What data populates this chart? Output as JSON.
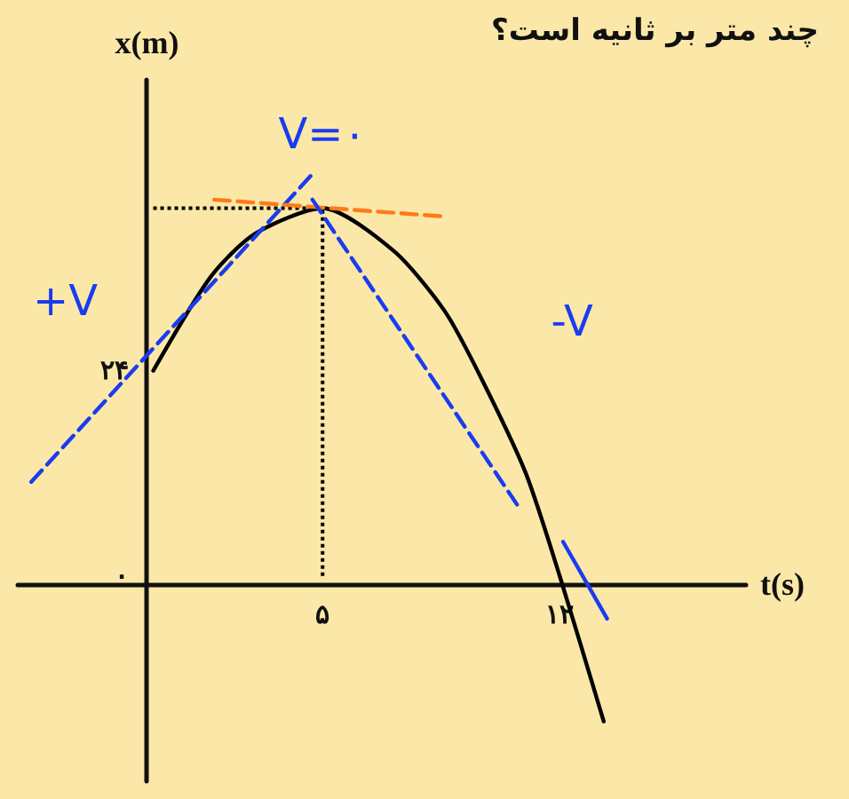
{
  "chart_data": {
    "type": "line",
    "title": "چند متر بر ثانیه است؟",
    "xlabel": "t(s)",
    "ylabel": "x(m)",
    "xlim": [
      -4,
      17.5
    ],
    "ylim": [
      -24,
      58
    ],
    "xticks": [
      {
        "value": 5,
        "label": "۵"
      },
      {
        "value": 12,
        "label": "۱۲"
      }
    ],
    "yticks": [
      {
        "value": 0,
        "label": "۰"
      },
      {
        "value": 24,
        "label": "۲۴"
      }
    ],
    "grid": false,
    "marker": "none",
    "ref_lines": [
      {
        "axis": "x",
        "value": 5,
        "color": "#000000",
        "line_style": "dotted"
      },
      {
        "axis": "y",
        "value": 43,
        "color": "#000000",
        "line_style": "dotted"
      }
    ],
    "annotations": [
      "+V",
      "V=۰",
      "-V"
    ],
    "series": [
      {
        "color": "#000000",
        "line_style": "solid",
        "x": [
          0,
          1.7,
          3,
          5,
          7.1,
          8.6,
          9.7,
          11,
          12,
          13.3
        ],
        "values": [
          24,
          35,
          40,
          43,
          38,
          31,
          23,
          12,
          0,
          -17
        ]
      },
      {
        "color": "#1a3cf0",
        "line_style": "dashed",
        "x": [
          -3.6,
          4.7
        ],
        "values": [
          11,
          47
        ]
      },
      {
        "color": "#ff7a1a",
        "line_style": "dashed",
        "x": [
          1.8,
          8.7
        ],
        "values": [
          44,
          42
        ]
      },
      {
        "color": "#1a3cf0",
        "line_style": "dashed",
        "x": [
          4.7,
          10.8
        ],
        "values": [
          44,
          8
        ]
      },
      {
        "color": "#1a3cf0",
        "line_style": "solid",
        "x": [
          12.1,
          13.4
        ],
        "values": [
          4,
          -5
        ]
      }
    ]
  }
}
